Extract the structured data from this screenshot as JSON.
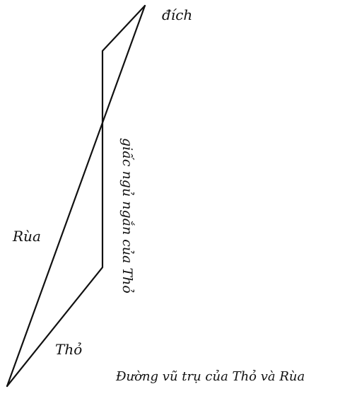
{
  "labels": {
    "finish": "đích",
    "tortoise": "Rùa",
    "hare": "Thỏ",
    "nap": "giấc ngủ ngắn của Thỏ",
    "caption": "Đường vũ trụ của Thỏ và Rùa"
  },
  "colors": {
    "line": "#111111",
    "background": "#ffffff"
  }
}
